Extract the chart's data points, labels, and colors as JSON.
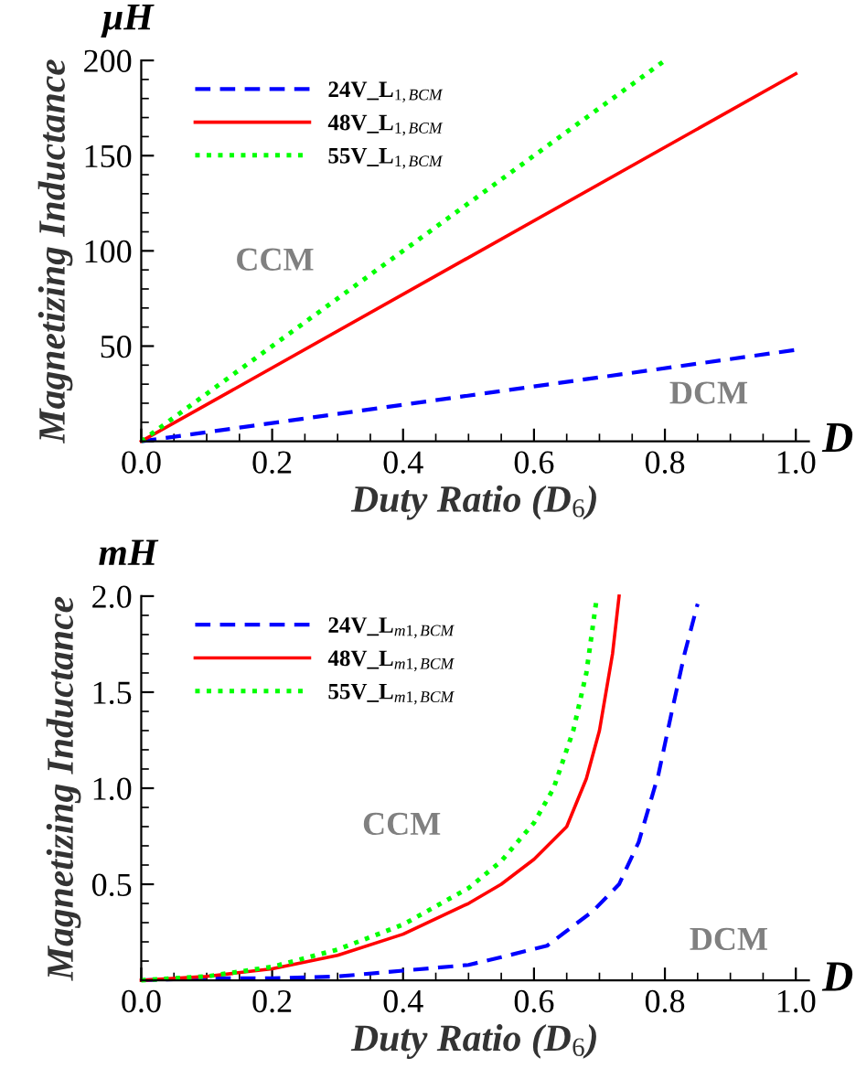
{
  "chart_data": [
    {
      "type": "line",
      "ylabel": "Magnetizing Inductance",
      "xlabel": "Duty Ratio (D$_{6}$)",
      "annotations": [
        "μH",
        "D",
        "CCM",
        "DCM"
      ],
      "xlim": [
        0,
        1.02
      ],
      "ylim": [
        0,
        200
      ],
      "xticks": [
        {
          "value": 0,
          "label": "0.0"
        },
        {
          "value": 0.2,
          "label": "0.2"
        },
        {
          "value": 0.4,
          "label": "0.4"
        },
        {
          "value": 0.6,
          "label": "0.6"
        },
        {
          "value": 0.8,
          "label": "0.8"
        },
        {
          "value": 1,
          "label": "1.0"
        }
      ],
      "yticks": [
        {
          "value": 0,
          "label": null
        },
        50,
        100,
        150,
        200
      ],
      "grid": false,
      "legend": "top left",
      "series": [
        {
          "name": "24V_L$_{1,BCM}$",
          "color": "#0000ff",
          "line_style": "dashed",
          "x": [
            0,
            1
          ],
          "values": [
            0,
            48
          ]
        },
        {
          "name": "48V_L$_{1,BCM}$",
          "color": "#ff0000",
          "line_style": "solid",
          "x": [
            0,
            1
          ],
          "values": [
            0,
            193
          ]
        },
        {
          "name": "55V_L$_{1,BCM}$",
          "color": "#00ff00",
          "line_style": "dotted",
          "x": [
            0,
            0.8
          ],
          "values": [
            0,
            200
          ]
        }
      ]
    },
    {
      "type": "line",
      "ylabel": "Magnetizing Inductance",
      "xlabel": "Duty Ratio (D$_{6}$)",
      "annotations": [
        "mH",
        "D",
        "CCM",
        "DCM"
      ],
      "xlim": [
        0,
        1.02
      ],
      "ylim": [
        0,
        2.0
      ],
      "xticks": [
        {
          "value": 0,
          "label": "0.0"
        },
        {
          "value": 0.2,
          "label": "0.2"
        },
        {
          "value": 0.4,
          "label": "0.4"
        },
        {
          "value": 0.6,
          "label": "0.6"
        },
        {
          "value": 0.8,
          "label": "0.8"
        },
        {
          "value": 1,
          "label": "1.0"
        }
      ],
      "yticks": [
        {
          "value": 0,
          "label": null
        },
        {
          "value": 0.5,
          "label": "0.5"
        },
        {
          "value": 1,
          "label": "1.0"
        },
        {
          "value": 1.5,
          "label": "1.5"
        },
        {
          "value": 2,
          "label": "2.0"
        }
      ],
      "grid": false,
      "legend": "top left",
      "series": [
        {
          "name": "24V_L$_{m1,BCM}$",
          "color": "#0000ff",
          "line_style": "dashed",
          "x": [
            0,
            0.1,
            0.2,
            0.3,
            0.4,
            0.5,
            0.55,
            0.62,
            0.69,
            0.73,
            0.76,
            0.79,
            0.81,
            0.83,
            0.85
          ],
          "values": [
            0,
            0.01,
            0.01,
            0.02,
            0.05,
            0.08,
            0.12,
            0.18,
            0.36,
            0.5,
            0.72,
            1.07,
            1.39,
            1.7,
            1.96
          ]
        },
        {
          "name": "48V_L$_{m1,BCM}$",
          "color": "#ff0000",
          "line_style": "solid",
          "x": [
            0,
            0.1,
            0.2,
            0.3,
            0.4,
            0.5,
            0.55,
            0.6,
            0.65,
            0.68,
            0.7,
            0.72,
            0.73
          ],
          "values": [
            0,
            0.02,
            0.06,
            0.13,
            0.24,
            0.4,
            0.5,
            0.63,
            0.8,
            1.05,
            1.3,
            1.7,
            2.0
          ]
        },
        {
          "name": "55V_L$_{m1,BCM}$",
          "color": "#00ff00",
          "line_style": "dotted",
          "x": [
            0,
            0.1,
            0.2,
            0.3,
            0.4,
            0.5,
            0.55,
            0.6,
            0.63,
            0.66,
            0.68,
            0.695
          ],
          "values": [
            0,
            0.02,
            0.07,
            0.16,
            0.29,
            0.48,
            0.62,
            0.82,
            1.0,
            1.3,
            1.6,
            1.97
          ]
        }
      ]
    }
  ]
}
